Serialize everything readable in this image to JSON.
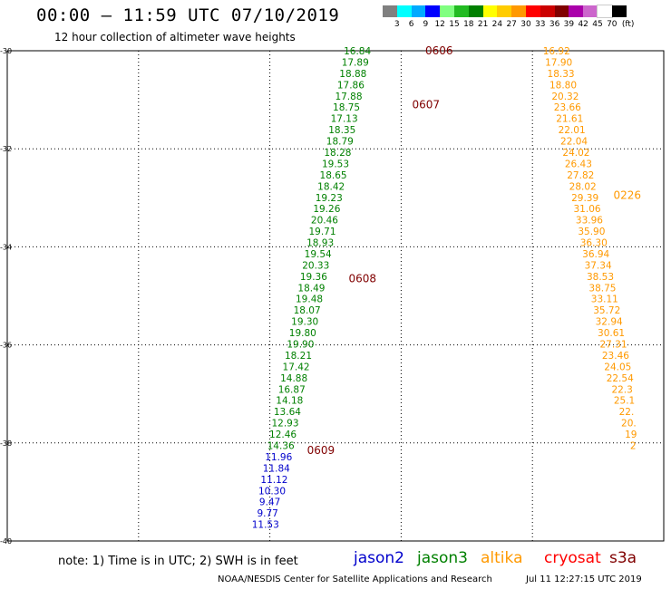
{
  "header": {
    "title": "00:00 – 11:59 UTC 07/10/2019",
    "subtitle": "12 hour collection of altimeter wave heights"
  },
  "colorbar": {
    "unit_label": "(ft)",
    "labels": [
      "3",
      "6",
      "9",
      "12",
      "15",
      "18",
      "21",
      "24",
      "27",
      "30",
      "33",
      "36",
      "39",
      "42",
      "45",
      "70"
    ],
    "colors": [
      "#808080",
      "#00ffff",
      "#00aaff",
      "#0000ff",
      "#80ff80",
      "#22bb22",
      "#008000",
      "#ffff00",
      "#ffcc00",
      "#ff9900",
      "#ff0000",
      "#cc0000",
      "#800000",
      "#aa00aa",
      "#cc66cc",
      "#ffffff",
      "#000000"
    ]
  },
  "footer": {
    "note": "note: 1) Time is in UTC; 2) SWH is in feet",
    "satellites": [
      {
        "name": "jason2",
        "color": "#0000cc"
      },
      {
        "name": "jason3",
        "color": "#008000"
      },
      {
        "name": "altika",
        "color": "#ff9900"
      },
      {
        "name": "cryosat",
        "color": "#ff0000"
      },
      {
        "name": "s3a",
        "color": "#800000"
      }
    ],
    "credit": "NOAA/NESDIS Center for Satellite Applications and Research",
    "timestamp": "Jul 11 12:27:15 UTC 2019"
  },
  "chart_data": {
    "type": "scatter",
    "xlim": [
      45,
      60
    ],
    "ylim": [
      -40,
      -30
    ],
    "x_ticks": [
      "45",
      "48",
      "51",
      "54",
      "57",
      "60"
    ],
    "y_ticks": [
      "-30",
      "-32",
      "-34",
      "-36",
      "-38",
      "-40"
    ],
    "grid": true,
    "pass_labels": [
      {
        "text": "0606",
        "lon": 54.55,
        "lat": -30.0,
        "color": "#800000"
      },
      {
        "text": "0607",
        "lon": 54.25,
        "lat": -31.1,
        "color": "#800000"
      },
      {
        "text": "0608",
        "lon": 52.8,
        "lat": -34.65,
        "color": "#800000"
      },
      {
        "text": "0609",
        "lon": 51.85,
        "lat": -38.15,
        "color": "#800000"
      },
      {
        "text": "0226",
        "lon": 58.85,
        "lat": -32.95,
        "color": "#ff9900"
      }
    ],
    "series": [
      {
        "name": "jason3",
        "color": "#008000",
        "points": [
          {
            "lon": 53.0,
            "lat": -30.0,
            "swh": "16.84"
          },
          {
            "lon": 52.95,
            "lat": -30.23,
            "swh": "17.89"
          },
          {
            "lon": 52.9,
            "lat": -30.46,
            "swh": "18.88"
          },
          {
            "lon": 52.85,
            "lat": -30.69,
            "swh": "17.86"
          },
          {
            "lon": 52.8,
            "lat": -30.92,
            "swh": "17.88"
          },
          {
            "lon": 52.75,
            "lat": -31.15,
            "swh": "18.75"
          },
          {
            "lon": 52.7,
            "lat": -31.38,
            "swh": "17.13"
          },
          {
            "lon": 52.65,
            "lat": -31.61,
            "swh": "18.35"
          },
          {
            "lon": 52.6,
            "lat": -31.84,
            "swh": "18.79"
          },
          {
            "lon": 52.55,
            "lat": -32.07,
            "swh": "18.28"
          },
          {
            "lon": 52.5,
            "lat": -32.3,
            "swh": "19.53"
          },
          {
            "lon": 52.45,
            "lat": -32.53,
            "swh": "18.65"
          },
          {
            "lon": 52.4,
            "lat": -32.76,
            "swh": "18.42"
          },
          {
            "lon": 52.35,
            "lat": -32.99,
            "swh": "19.23"
          },
          {
            "lon": 52.3,
            "lat": -33.22,
            "swh": "19.26"
          },
          {
            "lon": 52.25,
            "lat": -33.45,
            "swh": "20.46"
          },
          {
            "lon": 52.2,
            "lat": -33.68,
            "swh": "19.71"
          },
          {
            "lon": 52.15,
            "lat": -33.91,
            "swh": "18.93"
          },
          {
            "lon": 52.1,
            "lat": -34.14,
            "swh": "19.54"
          },
          {
            "lon": 52.05,
            "lat": -34.37,
            "swh": "20.33"
          },
          {
            "lon": 52.0,
            "lat": -34.6,
            "swh": "19.36"
          },
          {
            "lon": 51.95,
            "lat": -34.83,
            "swh": "18.49"
          },
          {
            "lon": 51.9,
            "lat": -35.06,
            "swh": "19.48"
          },
          {
            "lon": 51.85,
            "lat": -35.29,
            "swh": "18.07"
          },
          {
            "lon": 51.8,
            "lat": -35.52,
            "swh": "19.30"
          },
          {
            "lon": 51.75,
            "lat": -35.75,
            "swh": "19.80"
          },
          {
            "lon": 51.7,
            "lat": -35.98,
            "swh": "19.90"
          },
          {
            "lon": 51.65,
            "lat": -36.21,
            "swh": "18.21"
          },
          {
            "lon": 51.6,
            "lat": -36.44,
            "swh": "17.42"
          },
          {
            "lon": 51.55,
            "lat": -36.67,
            "swh": "14.88"
          },
          {
            "lon": 51.5,
            "lat": -36.9,
            "swh": "16.87"
          },
          {
            "lon": 51.45,
            "lat": -37.13,
            "swh": "14.18"
          },
          {
            "lon": 51.4,
            "lat": -37.36,
            "swh": "13.64"
          },
          {
            "lon": 51.35,
            "lat": -37.59,
            "swh": "12.93"
          },
          {
            "lon": 51.3,
            "lat": -37.82,
            "swh": "12.46"
          },
          {
            "lon": 51.25,
            "lat": -38.05,
            "swh": "14.36"
          }
        ]
      },
      {
        "name": "jason2",
        "color": "#0000cc",
        "points": [
          {
            "lon": 51.2,
            "lat": -38.28,
            "swh": "11.96"
          },
          {
            "lon": 51.15,
            "lat": -38.51,
            "swh": "11.84"
          },
          {
            "lon": 51.1,
            "lat": -38.74,
            "swh": "11.12"
          },
          {
            "lon": 51.05,
            "lat": -38.97,
            "swh": "10.30"
          },
          {
            "lon": 51.0,
            "lat": -39.2,
            "swh": "9.47"
          },
          {
            "lon": 50.95,
            "lat": -39.43,
            "swh": "9.77"
          },
          {
            "lon": 50.9,
            "lat": -39.66,
            "swh": "11.53"
          }
        ]
      },
      {
        "name": "altika",
        "color": "#ff9900",
        "points": [
          {
            "lon": 57.55,
            "lat": -30.0,
            "swh": "16.92"
          },
          {
            "lon": 57.6,
            "lat": -30.23,
            "swh": "17.90"
          },
          {
            "lon": 57.65,
            "lat": -30.46,
            "swh": "18.33"
          },
          {
            "lon": 57.7,
            "lat": -30.69,
            "swh": "18.80"
          },
          {
            "lon": 57.75,
            "lat": -30.92,
            "swh": "20.32"
          },
          {
            "lon": 57.8,
            "lat": -31.15,
            "swh": "23.66"
          },
          {
            "lon": 57.85,
            "lat": -31.38,
            "swh": "21.61"
          },
          {
            "lon": 57.9,
            "lat": -31.61,
            "swh": "22.01"
          },
          {
            "lon": 57.95,
            "lat": -31.84,
            "swh": "22.04"
          },
          {
            "lon": 58.0,
            "lat": -32.07,
            "swh": "24.02"
          },
          {
            "lon": 58.05,
            "lat": -32.3,
            "swh": "26.43"
          },
          {
            "lon": 58.1,
            "lat": -32.53,
            "swh": "27.82"
          },
          {
            "lon": 58.15,
            "lat": -32.76,
            "swh": "28.02"
          },
          {
            "lon": 58.2,
            "lat": -32.99,
            "swh": "29.39"
          },
          {
            "lon": 58.25,
            "lat": -33.22,
            "swh": "31.06"
          },
          {
            "lon": 58.3,
            "lat": -33.45,
            "swh": "33.96"
          },
          {
            "lon": 58.35,
            "lat": -33.68,
            "swh": "35.90"
          },
          {
            "lon": 58.4,
            "lat": -33.91,
            "swh": "36.30"
          },
          {
            "lon": 58.45,
            "lat": -34.14,
            "swh": "36.94"
          },
          {
            "lon": 58.5,
            "lat": -34.37,
            "swh": "37.34"
          },
          {
            "lon": 58.55,
            "lat": -34.6,
            "swh": "38.53"
          },
          {
            "lon": 58.6,
            "lat": -34.83,
            "swh": "38.75"
          },
          {
            "lon": 58.65,
            "lat": -35.06,
            "swh": "33.11"
          },
          {
            "lon": 58.7,
            "lat": -35.29,
            "swh": "35.72"
          },
          {
            "lon": 58.75,
            "lat": -35.52,
            "swh": "32.94"
          },
          {
            "lon": 58.8,
            "lat": -35.75,
            "swh": "30.61"
          },
          {
            "lon": 58.85,
            "lat": -35.98,
            "swh": "27.31"
          },
          {
            "lon": 58.9,
            "lat": -36.21,
            "swh": "23.46"
          },
          {
            "lon": 58.95,
            "lat": -36.44,
            "swh": "24.05"
          },
          {
            "lon": 59.0,
            "lat": -36.67,
            "swh": "22.54"
          },
          {
            "lon": 59.05,
            "lat": -36.9,
            "swh": "22.3"
          },
          {
            "lon": 59.1,
            "lat": -37.13,
            "swh": "25.1"
          },
          {
            "lon": 59.15,
            "lat": -37.36,
            "swh": "22."
          },
          {
            "lon": 59.2,
            "lat": -37.59,
            "swh": "20."
          },
          {
            "lon": 59.25,
            "lat": -37.82,
            "swh": "19"
          },
          {
            "lon": 59.3,
            "lat": -38.05,
            "swh": "2"
          }
        ]
      }
    ]
  }
}
